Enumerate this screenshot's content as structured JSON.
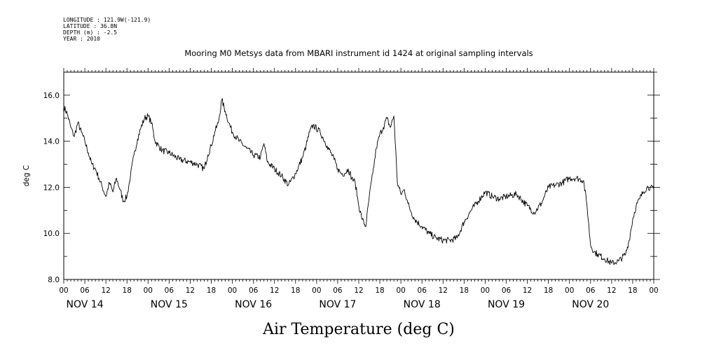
{
  "meta_lines": [
    "LONGITUDE : 121.9W(-121.9)",
    "LATITUDE : 36.8N",
    "DEPTH (m) : -2.5",
    "YEAR : 2010"
  ],
  "chart_data": {
    "type": "line",
    "title": "Mooring M0 Metsys data from MBARI instrument id 1424 at original sampling intervals",
    "xlabel": "Air Temperature (deg C)",
    "ylabel": "deg C",
    "xlim": [
      "2010-11-14T00:00",
      "2010-11-21T00:00"
    ],
    "ylim": [
      8.0,
      17.0
    ],
    "yticks": [
      8.0,
      10.0,
      12.0,
      14.0,
      16.0
    ],
    "ytick_labels": [
      "8.0",
      "10.0",
      "12.0",
      "14.0",
      "16.0"
    ],
    "hour_tick_labels": [
      "00",
      "06",
      "12",
      "18",
      "00",
      "06",
      "12",
      "18",
      "00",
      "06",
      "12",
      "18",
      "00",
      "06",
      "12",
      "18",
      "00",
      "06",
      "12",
      "18",
      "00",
      "06",
      "12",
      "18",
      "00",
      "06",
      "12",
      "18",
      "00"
    ],
    "day_labels": [
      "NOV 14",
      "NOV 15",
      "NOV 16",
      "NOV 17",
      "NOV 18",
      "NOV 19",
      "NOV 20"
    ],
    "grid": false,
    "series": [
      {
        "color": "#000000",
        "x": [
          "2010-11-14T00:00",
          "2010-11-14T01:00",
          "2010-11-14T02:00",
          "2010-11-14T03:00",
          "2010-11-14T04:00",
          "2010-11-14T05:00",
          "2010-11-14T06:00",
          "2010-11-14T07:00",
          "2010-11-14T08:00",
          "2010-11-14T09:00",
          "2010-11-14T10:00",
          "2010-11-14T11:00",
          "2010-11-14T12:00",
          "2010-11-14T13:00",
          "2010-11-14T14:00",
          "2010-11-14T15:00",
          "2010-11-14T16:00",
          "2010-11-14T17:00",
          "2010-11-14T18:00",
          "2010-11-14T19:00",
          "2010-11-14T20:00",
          "2010-11-14T21:00",
          "2010-11-14T22:00",
          "2010-11-14T23:00",
          "2010-11-15T00:00",
          "2010-11-15T01:00",
          "2010-11-15T02:00",
          "2010-11-15T04:00",
          "2010-11-15T06:00",
          "2010-11-15T09:00",
          "2010-11-15T12:00",
          "2010-11-15T14:00",
          "2010-11-15T16:00",
          "2010-11-15T17:00",
          "2010-11-15T18:00",
          "2010-11-15T19:00",
          "2010-11-15T20:00",
          "2010-11-15T21:00",
          "2010-11-15T22:00",
          "2010-11-15T23:00",
          "2010-11-16T00:00",
          "2010-11-16T02:00",
          "2010-11-16T04:00",
          "2010-11-16T06:00",
          "2010-11-16T08:00",
          "2010-11-16T09:00",
          "2010-11-16T10:00",
          "2010-11-16T12:00",
          "2010-11-16T14:00",
          "2010-11-16T16:00",
          "2010-11-16T18:00",
          "2010-11-16T20:00",
          "2010-11-16T21:00",
          "2010-11-16T22:00",
          "2010-11-16T23:00",
          "2010-11-17T01:00",
          "2010-11-17T03:00",
          "2010-11-17T05:00",
          "2010-11-17T06:00",
          "2010-11-17T07:00",
          "2010-11-17T08:00",
          "2010-11-17T09:00",
          "2010-11-17T10:00",
          "2010-11-17T11:00",
          "2010-11-17T12:00",
          "2010-11-17T13:00",
          "2010-11-17T14:00",
          "2010-11-17T15:00",
          "2010-11-17T16:00",
          "2010-11-17T17:00",
          "2010-11-17T18:00",
          "2010-11-17T19:00",
          "2010-11-17T20:00",
          "2010-11-17T21:00",
          "2010-11-17T22:00",
          "2010-11-17T23:00",
          "2010-11-18T00:00",
          "2010-11-18T01:00",
          "2010-11-18T02:00",
          "2010-11-18T03:00",
          "2010-11-18T04:00",
          "2010-11-18T06:00",
          "2010-11-18T08:00",
          "2010-11-18T10:00",
          "2010-11-18T12:00",
          "2010-11-18T14:00",
          "2010-11-18T16:00",
          "2010-11-18T18:00",
          "2010-11-18T20:00",
          "2010-11-18T22:00",
          "2010-11-19T00:00",
          "2010-11-19T02:00",
          "2010-11-19T04:00",
          "2010-11-19T06:00",
          "2010-11-19T09:00",
          "2010-11-19T12:00",
          "2010-11-19T14:00",
          "2010-11-19T16:00",
          "2010-11-19T18:00",
          "2010-11-19T20:00",
          "2010-11-19T22:00",
          "2010-11-20T00:00",
          "2010-11-20T02:00",
          "2010-11-20T04:00",
          "2010-11-20T05:00",
          "2010-11-20T06:00",
          "2010-11-20T07:00",
          "2010-11-20T08:00",
          "2010-11-20T10:00",
          "2010-11-20T12:00",
          "2010-11-20T14:00",
          "2010-11-20T16:00",
          "2010-11-20T17:00",
          "2010-11-20T18:00",
          "2010-11-20T19:00",
          "2010-11-20T20:00",
          "2010-11-20T21:00",
          "2010-11-20T22:00",
          "2010-11-20T23:00",
          "2010-11-21T00:00"
        ],
        "y": [
          15.5,
          15.2,
          14.6,
          14.2,
          14.8,
          14.4,
          14.0,
          13.5,
          13.0,
          12.8,
          12.4,
          12.0,
          11.6,
          12.2,
          11.8,
          12.4,
          11.9,
          11.4,
          11.6,
          12.5,
          13.4,
          14.1,
          14.6,
          15.0,
          15.1,
          14.8,
          14.0,
          13.6,
          13.5,
          13.2,
          13.1,
          13.0,
          12.8,
          13.4,
          13.8,
          14.4,
          14.8,
          15.8,
          15.3,
          14.8,
          14.4,
          14.0,
          13.7,
          13.4,
          13.3,
          13.9,
          13.1,
          12.8,
          12.5,
          12.1,
          12.6,
          13.3,
          13.8,
          14.4,
          14.7,
          14.4,
          13.8,
          13.2,
          12.8,
          12.6,
          12.6,
          12.8,
          12.4,
          12.2,
          11.2,
          10.6,
          10.3,
          11.6,
          12.6,
          13.7,
          14.3,
          14.6,
          15.0,
          14.6,
          15.1,
          12.2,
          11.7,
          11.9,
          11.3,
          10.9,
          10.6,
          10.3,
          10.0,
          9.8,
          9.7,
          9.7,
          9.8,
          10.5,
          11.0,
          11.4,
          11.8,
          11.6,
          11.5,
          11.6,
          11.7,
          11.2,
          10.9,
          11.3,
          12.0,
          12.1,
          12.2,
          12.4,
          12.4,
          12.3,
          11.2,
          9.5,
          9.2,
          9.1,
          8.9,
          8.7,
          8.8,
          9.1,
          9.7,
          10.6,
          11.2,
          11.5,
          11.8,
          12.0,
          12.0,
          11.9
        ]
      }
    ]
  }
}
